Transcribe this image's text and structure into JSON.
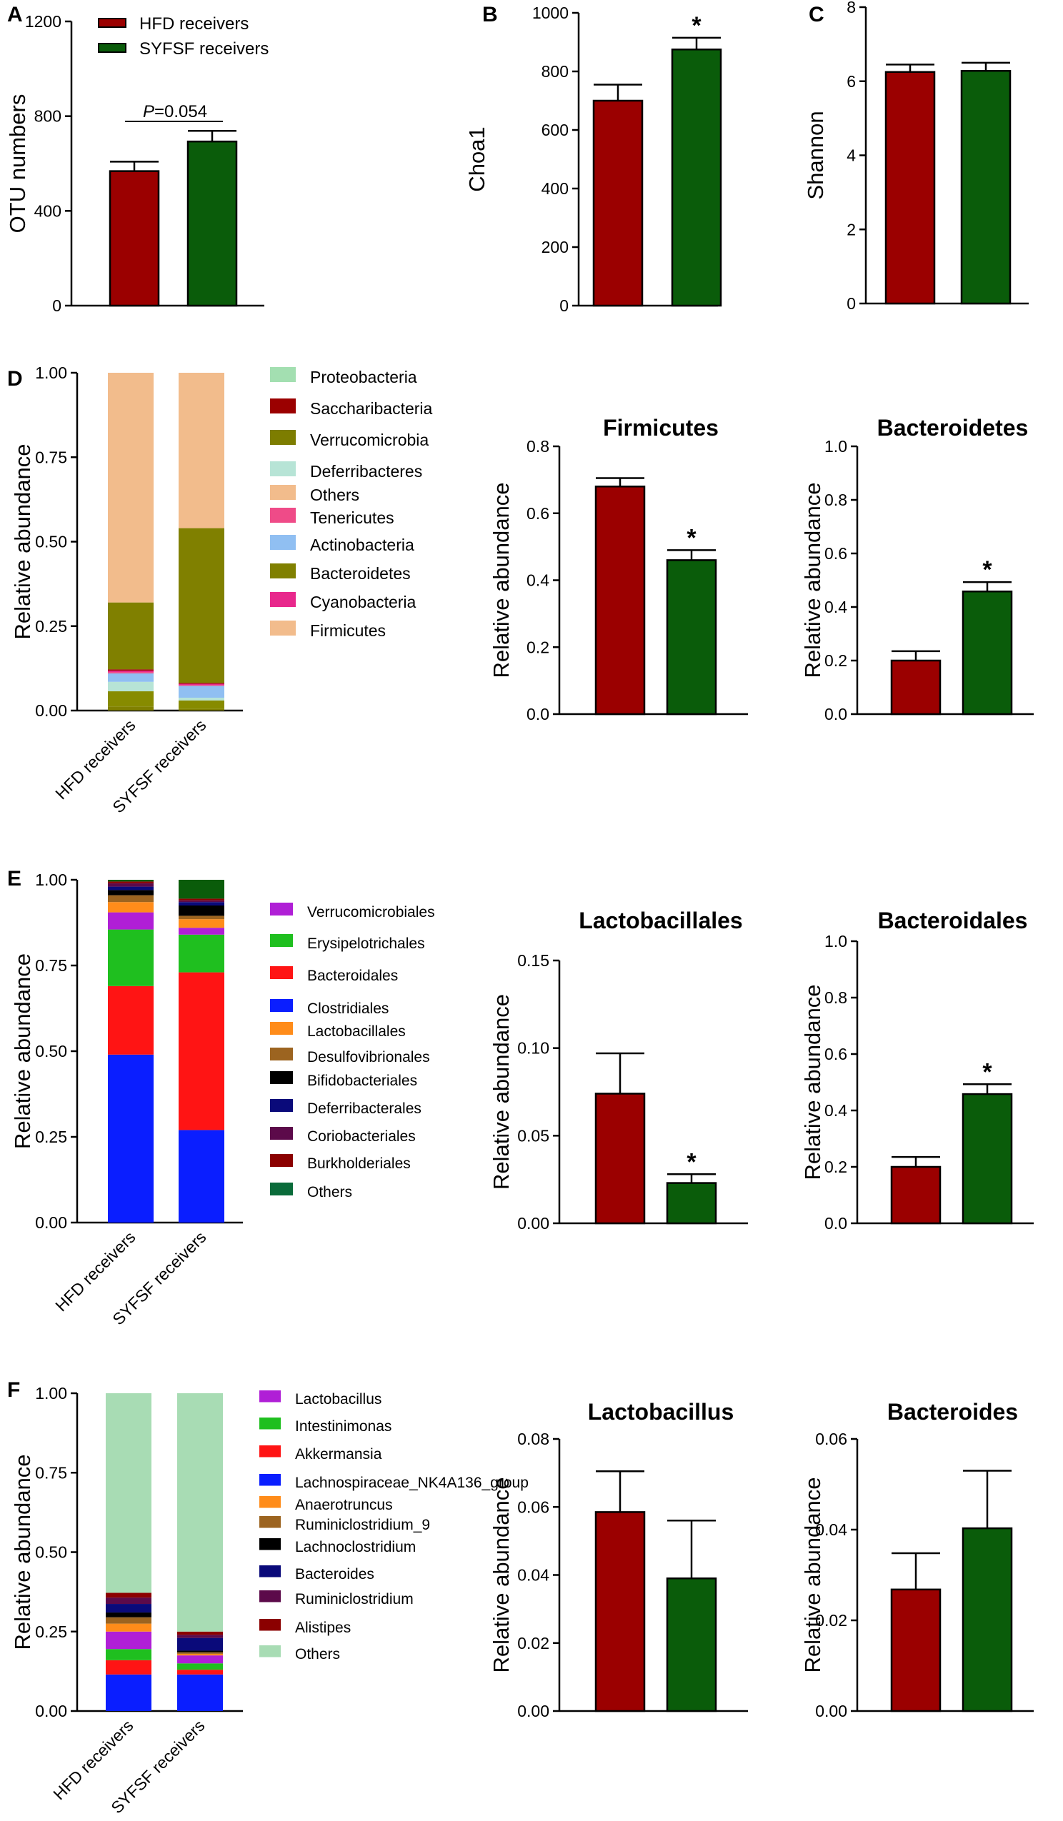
{
  "colors": {
    "hfd": "#9b0000",
    "syfsf": "#0a5c0a"
  },
  "groups": [
    "HFD receivers",
    "SYFSF receivers"
  ],
  "chart_data": [
    {
      "id": "A",
      "panel": "A",
      "type": "bar",
      "title": "",
      "ylabel": "OTU numbers",
      "ylim": [
        0,
        1200
      ],
      "yticks": [
        "0",
        "400",
        "800",
        "1200"
      ],
      "categories": [
        "HFD receivers",
        "SYFSF receivers"
      ],
      "values": [
        568,
        693
      ],
      "errors": [
        40,
        45
      ],
      "stars": [
        "",
        ""
      ],
      "legend": [
        "HFD receivers",
        "SYFSF receivers"
      ],
      "pvalue_label": "P",
      "pvalue_text": "=0.054"
    },
    {
      "id": "B",
      "panel": "B",
      "type": "bar",
      "title": "",
      "ylabel": "Choa1",
      "ylim": [
        0,
        1000
      ],
      "yticks": [
        "0",
        "200",
        "400",
        "600",
        "800",
        "1000"
      ],
      "categories": [
        "HFD receivers",
        "SYFSF receivers"
      ],
      "values": [
        700,
        875
      ],
      "errors": [
        55,
        40
      ],
      "stars": [
        "",
        "*"
      ]
    },
    {
      "id": "C",
      "panel": "C",
      "type": "bar",
      "title": "",
      "ylabel": "Shannon",
      "ylim": [
        0,
        8
      ],
      "yticks": [
        "0",
        "2",
        "4",
        "6",
        "8"
      ],
      "categories": [
        "HFD receivers",
        "SYFSF receivers"
      ],
      "values": [
        6.25,
        6.28
      ],
      "errors": [
        0.2,
        0.22
      ],
      "stars": [
        "",
        ""
      ]
    },
    {
      "id": "D_stack",
      "panel": "D",
      "type": "stacked_bar",
      "title": "",
      "ylabel": "Relative abundance",
      "ylim": [
        0,
        1
      ],
      "yticks": [
        "0.00",
        "0.25",
        "0.50",
        "0.75",
        "1.00"
      ],
      "categories": [
        "HFD receivers",
        "SYFSF receivers"
      ],
      "series": [
        {
          "name": "Bacteroidetes",
          "color": "#808000",
          "values": [
            0.012,
            0.005
          ]
        },
        {
          "name": "Verrucomicrobia",
          "color": "#878b00",
          "values": [
            0.045,
            0.025
          ]
        },
        {
          "name": "Deferribacteres",
          "color": "#b7e4d6",
          "values": [
            0.028,
            0.008
          ]
        },
        {
          "name": "Actinobacteria",
          "color": "#90bff2",
          "values": [
            0.025,
            0.035
          ]
        },
        {
          "name": "Tenericutes",
          "color": "#ef4b88",
          "values": [
            0.004,
            0.003
          ]
        },
        {
          "name": "Cyanobacteria",
          "color": "#e8288c",
          "values": [
            0.004,
            0.003
          ]
        },
        {
          "name": "Saccharibacteria",
          "color": "#9b0000",
          "values": [
            0.004,
            0.003
          ]
        },
        {
          "name": "Bacteroidetes",
          "color": "#808000",
          "values": [
            0.198,
            0.458
          ]
        },
        {
          "name": "Firmicutes",
          "color": "#f2bc8c",
          "values": [
            0.68,
            0.46
          ]
        }
      ],
      "legend": [
        {
          "name": "Proteobacteria",
          "color": "#a3dfb1"
        },
        {
          "name": "Saccharibacteria",
          "color": "#9b0000"
        },
        {
          "name": "Verrucomicrobia",
          "color": "#7d7d00"
        },
        {
          "name": "Deferribacteres",
          "color": "#b7e4d6"
        },
        {
          "name": "Others",
          "color": "#f2bc8c"
        },
        {
          "name": "Tenericutes",
          "color": "#ef4b88"
        },
        {
          "name": "Actinobacteria",
          "color": "#90bff2"
        },
        {
          "name": "Bacteroidetes",
          "color": "#808000"
        },
        {
          "name": "Cyanobacteria",
          "color": "#e8288c"
        },
        {
          "name": "Firmicutes",
          "color": "#f2bc8c"
        }
      ]
    },
    {
      "id": "D_firm",
      "panel": "",
      "type": "bar",
      "title": "Firmicutes",
      "ylabel": "Relative abundance",
      "ylim": [
        0,
        0.8
      ],
      "yticks": [
        "0.0",
        "0.2",
        "0.4",
        "0.6",
        "0.8"
      ],
      "categories": [
        "HFD receivers",
        "SYFSF receivers"
      ],
      "values": [
        0.68,
        0.46
      ],
      "errors": [
        0.025,
        0.03
      ],
      "stars": [
        "",
        "*"
      ]
    },
    {
      "id": "D_bact",
      "panel": "",
      "type": "bar",
      "title": "Bacteroidetes",
      "ylabel": "Relative abundance",
      "ylim": [
        0,
        1
      ],
      "yticks": [
        "0.0",
        "0.2",
        "0.4",
        "0.6",
        "0.8",
        "1.0"
      ],
      "categories": [
        "HFD receivers",
        "SYFSF receivers"
      ],
      "values": [
        0.2,
        0.458
      ],
      "errors": [
        0.035,
        0.035
      ],
      "stars": [
        "",
        "*"
      ]
    },
    {
      "id": "E_stack",
      "panel": "E",
      "type": "stacked_bar",
      "title": "",
      "ylabel": "Relative abundance",
      "ylim": [
        0,
        1
      ],
      "yticks": [
        "0.00",
        "0.25",
        "0.50",
        "0.75",
        "1.00"
      ],
      "categories": [
        "HFD receivers",
        "SYFSF receivers"
      ],
      "series": [
        {
          "name": "Clostridiales",
          "color": "#0a1eff",
          "values": [
            0.49,
            0.27
          ]
        },
        {
          "name": "Bacteroidales",
          "color": "#ff1414",
          "values": [
            0.2,
            0.46
          ]
        },
        {
          "name": "Erysipelotrichales",
          "color": "#1fbf1f",
          "values": [
            0.165,
            0.11
          ]
        },
        {
          "name": "Verrucomicrobiales",
          "color": "#b01fd6",
          "values": [
            0.05,
            0.02
          ]
        },
        {
          "name": "Lactobacillales",
          "color": "#ff8c1a",
          "values": [
            0.03,
            0.025
          ]
        },
        {
          "name": "Desulfovibrionales",
          "color": "#9c6420",
          "values": [
            0.02,
            0.01
          ]
        },
        {
          "name": "Bifidobacteriales",
          "color": "#000000",
          "values": [
            0.015,
            0.03
          ]
        },
        {
          "name": "Deferribacterales",
          "color": "#0a0a7a",
          "values": [
            0.01,
            0.01
          ]
        },
        {
          "name": "Coriobacteriales",
          "color": "#5c0a4a",
          "values": [
            0.01,
            0.005
          ]
        },
        {
          "name": "Burkholderiales",
          "color": "#8b0000",
          "values": [
            0.005,
            0.005
          ]
        },
        {
          "name": "Others",
          "color": "#0a5c0a",
          "values": [
            0.005,
            0.055
          ]
        }
      ],
      "legend": [
        {
          "name": "Verrucomicrobiales",
          "color": "#b01fd6"
        },
        {
          "name": "Erysipelotrichales",
          "color": "#1fbf1f"
        },
        {
          "name": "Bacteroidales",
          "color": "#ff1414"
        },
        {
          "name": "Clostridiales",
          "color": "#0a1eff"
        },
        {
          "name": "Lactobacillales",
          "color": "#ff8c1a"
        },
        {
          "name": "Desulfovibrionales",
          "color": "#9c6420"
        },
        {
          "name": "Bifidobacteriales",
          "color": "#000000"
        },
        {
          "name": "Deferribacterales",
          "color": "#0a0a7a"
        },
        {
          "name": "Coriobacteriales",
          "color": "#5c0a4a"
        },
        {
          "name": "Burkholderiales",
          "color": "#8b0000"
        },
        {
          "name": "Others",
          "color": "#0a6b3a"
        }
      ]
    },
    {
      "id": "E_lacto",
      "panel": "",
      "type": "bar",
      "title": "Lactobacillales",
      "ylabel": "Relative abundance",
      "ylim": [
        0,
        0.15
      ],
      "yticks": [
        "0.00",
        "0.05",
        "0.10",
        "0.15"
      ],
      "categories": [
        "HFD receivers",
        "SYFSF receivers"
      ],
      "values": [
        0.074,
        0.023
      ],
      "errors": [
        0.023,
        0.005
      ],
      "stars": [
        "",
        "*"
      ]
    },
    {
      "id": "E_bact",
      "panel": "",
      "type": "bar",
      "title": "Bacteroidales",
      "ylabel": "Relative abundance",
      "ylim": [
        0,
        1
      ],
      "yticks": [
        "0.0",
        "0.2",
        "0.4",
        "0.6",
        "0.8",
        "1.0"
      ],
      "categories": [
        "HFD receivers",
        "SYFSF receivers"
      ],
      "values": [
        0.2,
        0.458
      ],
      "errors": [
        0.035,
        0.035
      ],
      "stars": [
        "",
        "*"
      ]
    },
    {
      "id": "F_stack",
      "panel": "F",
      "type": "stacked_bar",
      "title": "",
      "ylabel": "Relative abundance",
      "ylim": [
        0,
        1
      ],
      "yticks": [
        "0.00",
        "0.25",
        "0.50",
        "0.75",
        "1.00"
      ],
      "categories": [
        "HFD receivers",
        "SYFSF receivers"
      ],
      "series": [
        {
          "name": "Lachnospiraceae_NK4A136_group",
          "color": "#0a1eff",
          "values": [
            0.115,
            0.115
          ]
        },
        {
          "name": "Akkermansia",
          "color": "#ff1414",
          "values": [
            0.045,
            0.015
          ]
        },
        {
          "name": "Intestinimonas",
          "color": "#1fbf1f",
          "values": [
            0.035,
            0.02
          ]
        },
        {
          "name": "Lactobacillus",
          "color": "#b01fd6",
          "values": [
            0.055,
            0.025
          ]
        },
        {
          "name": "Anaerotruncus",
          "color": "#ff8c1a",
          "values": [
            0.025,
            0.005
          ]
        },
        {
          "name": "Ruminiclostridium_9",
          "color": "#9c6420",
          "values": [
            0.02,
            0.005
          ]
        },
        {
          "name": "Lachnoclostridium",
          "color": "#000000",
          "values": [
            0.015,
            0.005
          ]
        },
        {
          "name": "Bacteroides",
          "color": "#0a0a7a",
          "values": [
            0.027,
            0.04
          ]
        },
        {
          "name": "Ruminiclostridium",
          "color": "#5c0a4a",
          "values": [
            0.02,
            0.01
          ]
        },
        {
          "name": "Alistipes",
          "color": "#8b0000",
          "values": [
            0.015,
            0.01
          ]
        },
        {
          "name": "Others",
          "color": "#a8dcb4",
          "values": [
            0.628,
            0.75
          ]
        }
      ],
      "legend": [
        {
          "name": "Lactobacillus",
          "color": "#b01fd6"
        },
        {
          "name": "Intestinimonas",
          "color": "#1fbf1f"
        },
        {
          "name": "Akkermansia",
          "color": "#ff1414"
        },
        {
          "name": "Lachnospiraceae_NK4A136_group",
          "color": "#0a1eff"
        },
        {
          "name": "Anaerotruncus",
          "color": "#ff8c1a"
        },
        {
          "name": "Ruminiclostridium_9",
          "color": "#9c6420"
        },
        {
          "name": "Lachnoclostridium",
          "color": "#000000"
        },
        {
          "name": "Bacteroides",
          "color": "#0a0a7a"
        },
        {
          "name": "Ruminiclostridium",
          "color": "#5c0a4a"
        },
        {
          "name": "Alistipes",
          "color": "#8b0000"
        },
        {
          "name": "Others",
          "color": "#a8dcb4"
        }
      ]
    },
    {
      "id": "F_lacto",
      "panel": "",
      "type": "bar",
      "title": "Lactobacillus",
      "ylabel": "Relative abundance",
      "ylim": [
        0,
        0.08
      ],
      "yticks": [
        "0.00",
        "0.02",
        "0.04",
        "0.06",
        "0.08"
      ],
      "categories": [
        "HFD receivers",
        "SYFSF receivers"
      ],
      "values": [
        0.0585,
        0.039
      ],
      "errors": [
        0.012,
        0.017
      ],
      "stars": [
        "",
        ""
      ]
    },
    {
      "id": "F_bact",
      "panel": "",
      "type": "bar",
      "title": "Bacteroides",
      "ylabel": "Relative abundance",
      "ylim": [
        0,
        0.06
      ],
      "yticks": [
        "0.00",
        "0.02",
        "0.04",
        "0.06"
      ],
      "categories": [
        "HFD receivers",
        "SYFSF receivers"
      ],
      "values": [
        0.0268,
        0.0403
      ],
      "errors": [
        0.008,
        0.0127
      ],
      "stars": [
        "",
        ""
      ]
    }
  ]
}
